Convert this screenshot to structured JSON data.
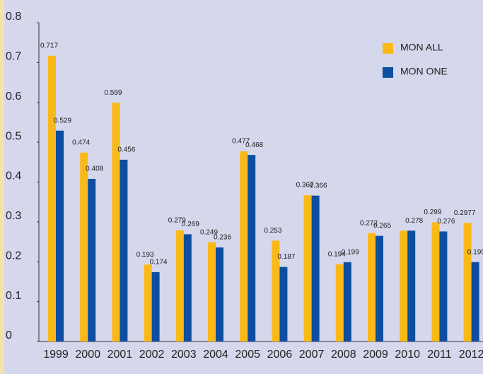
{
  "chart_data": {
    "type": "bar",
    "categories": [
      "1999",
      "2000",
      "2001",
      "2002",
      "2003",
      "2004",
      "2005",
      "2006",
      "2007",
      "2008",
      "2009",
      "2010",
      "2011",
      "2012"
    ],
    "series": [
      {
        "name": "MON ALL",
        "color": "#fbb919",
        "values": [
          0.717,
          0.474,
          0.599,
          0.193,
          0.279,
          0.249,
          0.477,
          0.253,
          0.367,
          0.194,
          0.272,
          0.278,
          0.299,
          0.2977
        ],
        "value_labels": [
          "0.717",
          "0.474",
          "0.599",
          "0.193",
          "0.279",
          "0.249",
          "0.477",
          "0.253",
          "0.367",
          "0.194",
          "0.272",
          null,
          "0.299",
          "0.2977"
        ]
      },
      {
        "name": "MON ONE",
        "color": "#0d4ea0",
        "values": [
          0.529,
          0.408,
          0.456,
          0.174,
          0.269,
          0.236,
          0.468,
          0.187,
          0.366,
          0.199,
          0.265,
          0.278,
          0.276,
          0.1992
        ]
      }
    ],
    "ylim": [
      0,
      0.8
    ],
    "yticks": [
      0,
      0.1,
      0.2,
      0.3,
      0.4,
      0.5,
      0.6,
      0.7,
      0.8
    ],
    "legend": "top-right"
  }
}
